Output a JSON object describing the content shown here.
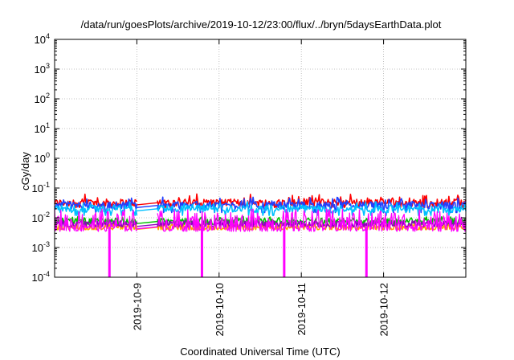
{
  "chart_data": {
    "type": "line",
    "title": "/data/run/goesPlots/archive/2019-10-12/23:00/flux/../bryn/5daysEarthData.plot",
    "xlabel": "Coordinated Universal Time (UTC)",
    "ylabel": "cGy/day",
    "y_scale": "log",
    "ylim": [
      0.0001,
      10000
    ],
    "xlim": [
      "2019-10-08T00:00",
      "2019-10-13T00:00"
    ],
    "grid": true,
    "y_ticks": [
      {
        "base": "10",
        "exp": "-4",
        "value": 0.0001
      },
      {
        "base": "10",
        "exp": "-3",
        "value": 0.001
      },
      {
        "base": "10",
        "exp": "-2",
        "value": 0.01
      },
      {
        "base": "10",
        "exp": "-1",
        "value": 0.1
      },
      {
        "base": "10",
        "exp": "0",
        "value": 1
      },
      {
        "base": "10",
        "exp": "1",
        "value": 10
      },
      {
        "base": "10",
        "exp": "2",
        "value": 100
      },
      {
        "base": "10",
        "exp": "3",
        "value": 1000
      },
      {
        "base": "10",
        "exp": "4",
        "value": 10000
      }
    ],
    "x_ticks": [
      "2019-10-9",
      "2019-10-10",
      "2019-10-11",
      "2019-10-12"
    ],
    "data_gap": [
      "2019-10-09T00:00",
      "2019-10-09T06:00"
    ],
    "dropouts": [
      "2019-10-08T16:00",
      "2019-10-09T19:00",
      "2019-10-10T19:00",
      "2019-10-11T19:00"
    ],
    "series": [
      {
        "color": "#ff0000",
        "typical": 0.032,
        "min": 0.022,
        "max": 0.065
      },
      {
        "color": "#2040ff",
        "typical": 0.026,
        "min": 0.015,
        "max": 0.05
      },
      {
        "color": "#00c0ff",
        "typical": 0.02,
        "min": 0.012,
        "max": 0.035
      },
      {
        "color": "#00c000",
        "typical": 0.0075,
        "min": 0.006,
        "max": 0.011
      },
      {
        "color": "#ffa000",
        "typical": 0.0048,
        "min": 0.004,
        "max": 0.006
      },
      {
        "color": "#9000c0",
        "typical": 0.006,
        "min": 0.005,
        "max": 0.008
      },
      {
        "color": "#ff00ff",
        "typical": 0.005,
        "min": 0.0035,
        "max": 0.02
      }
    ]
  }
}
